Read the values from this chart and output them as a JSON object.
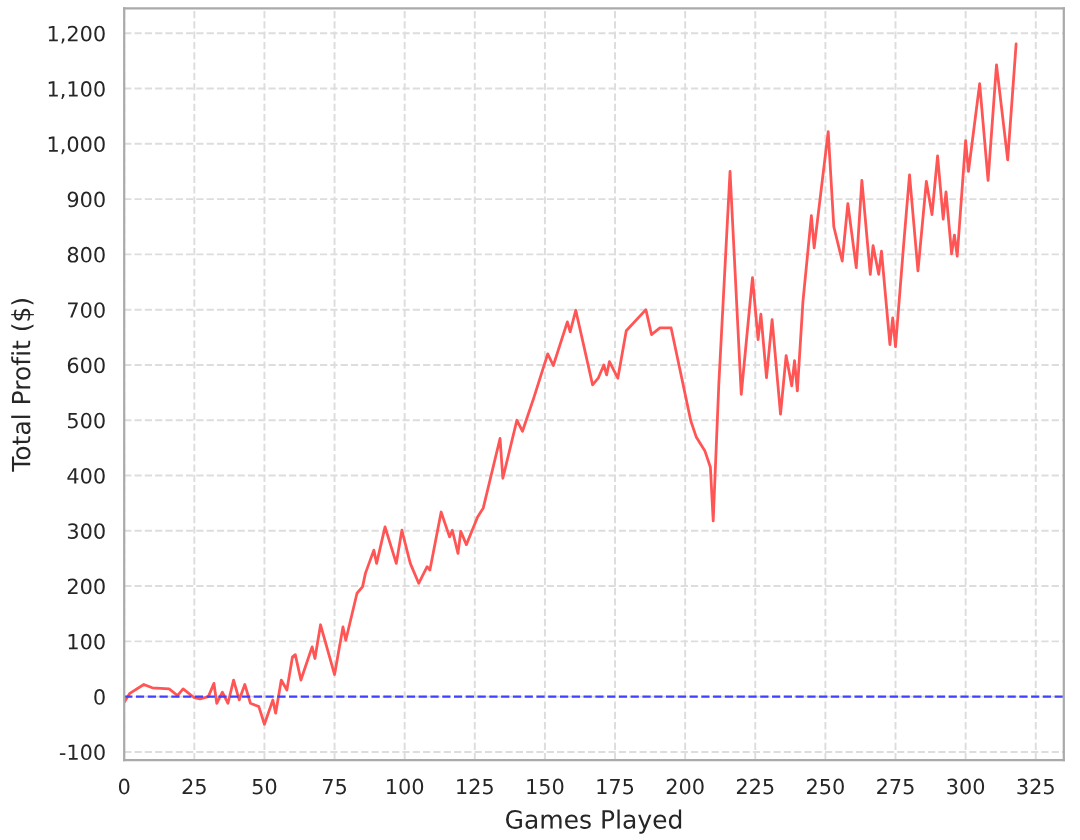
{
  "chart_data": {
    "type": "line",
    "xlabel": "Games Played",
    "ylabel": "Total Profit ($)",
    "xlim": [
      0,
      335
    ],
    "ylim": [
      -115,
      1245
    ],
    "xticks": [
      0,
      25,
      50,
      75,
      100,
      125,
      150,
      175,
      200,
      225,
      250,
      275,
      300,
      325
    ],
    "yticks": [
      {
        "value": -100,
        "label": "-100"
      },
      0,
      100,
      200,
      300,
      400,
      500,
      600,
      700,
      800,
      900,
      {
        "value": 1000,
        "label": "1,000"
      },
      {
        "value": 1100,
        "label": "1,100"
      },
      {
        "value": 1200,
        "label": "1,200"
      }
    ],
    "grid": true,
    "marker": "none",
    "line_style": "solid",
    "ref_lines": [
      {
        "axis": "y",
        "value": 0,
        "color": "#4040ff",
        "line_style": "dashed"
      }
    ],
    "series": [
      {
        "color": "#ff5555",
        "x": [
          0,
          2,
          7,
          10,
          16,
          19,
          21,
          25,
          27,
          30,
          32,
          33,
          35,
          37,
          39,
          41,
          43,
          45,
          48,
          50,
          53,
          54,
          56,
          58,
          60,
          61,
          63,
          67,
          68,
          70,
          75,
          78,
          79,
          83,
          85,
          86,
          89,
          90,
          93,
          97,
          99,
          102,
          105,
          108,
          109,
          113,
          116,
          117,
          119,
          120,
          122,
          124,
          126,
          128,
          134,
          135,
          140,
          142,
          146,
          151,
          153,
          158,
          159,
          161,
          167,
          169,
          171,
          172,
          173,
          176,
          179,
          186,
          188,
          191,
          195,
          197,
          198,
          202,
          204,
          207,
          209,
          210,
          212,
          216,
          220,
          224,
          226,
          227,
          229,
          231,
          234,
          236,
          238,
          239,
          240,
          242,
          245,
          246,
          251,
          253,
          256,
          258,
          261,
          263,
          266,
          267,
          269,
          270,
          273,
          274,
          275,
          278,
          280,
          283,
          286,
          288,
          290,
          292,
          293,
          295,
          296,
          297,
          300,
          301,
          305,
          308,
          311,
          315,
          318
        ],
        "values": [
          -10,
          6,
          22,
          16,
          14,
          2,
          14,
          -2,
          -4,
          0,
          24,
          -12,
          8,
          -12,
          30,
          -6,
          22,
          -12,
          -18,
          -50,
          -6,
          -30,
          30,
          12,
          72,
          76,
          30,
          90,
          69,
          130,
          40,
          126,
          102,
          187,
          199,
          223,
          265,
          241,
          307,
          241,
          301,
          241,
          205,
          235,
          229,
          334,
          289,
          301,
          259,
          299,
          275,
          300,
          325,
          341,
          467,
          395,
          500,
          480,
          540,
          620,
          599,
          678,
          660,
          699,
          564,
          576,
          600,
          582,
          606,
          576,
          662,
          700,
          655,
          667,
          667,
          619,
          595,
          499,
          469,
          445,
          415,
          318,
          565,
          950,
          547,
          758,
          646,
          692,
          577,
          682,
          511,
          617,
          562,
          608,
          553,
          715,
          870,
          812,
          1022,
          850,
          788,
          892,
          776,
          934,
          764,
          816,
          764,
          806,
          637,
          685,
          633,
          824,
          944,
          770,
          932,
          872,
          978,
          864,
          913,
          801,
          835,
          797,
          1006,
          950,
          1109,
          934,
          1143,
          971,
          1181
        ]
      }
    ]
  }
}
